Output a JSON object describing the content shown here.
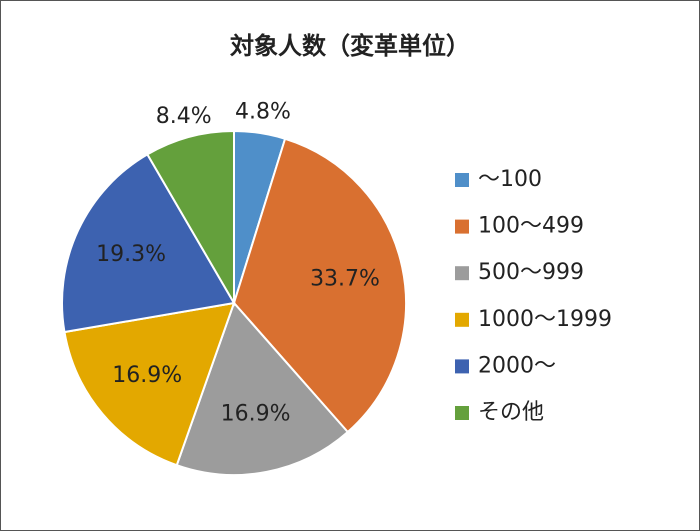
{
  "chart_data": {
    "type": "pie",
    "title": "対象人数（変革単位）",
    "categories": [
      "～100",
      "100～499",
      "500～999",
      "1000～1999",
      "2000～",
      "その他"
    ],
    "values": [
      4.8,
      33.7,
      16.9,
      16.9,
      19.3,
      8.4
    ],
    "value_labels": [
      "4.8%",
      "33.7%",
      "16.9%",
      "16.9%",
      "19.3%",
      "8.4%"
    ],
    "colors": [
      "#4f8fc9",
      "#d97030",
      "#9c9c9c",
      "#e3a800",
      "#3d62b0",
      "#64a03c"
    ],
    "legend": "right"
  }
}
